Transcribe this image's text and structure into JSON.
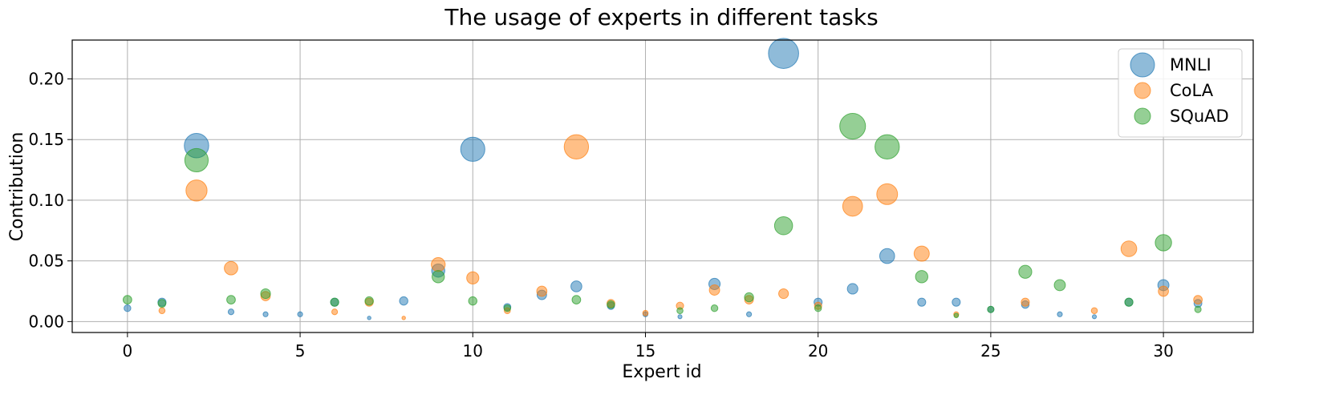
{
  "chart_data": {
    "type": "scatter",
    "title": "The usage of experts in different tasks",
    "xlabel": "Expert id",
    "ylabel": "Contribution",
    "xlim": [
      -1.6,
      32.6
    ],
    "ylim": [
      -0.009,
      0.232
    ],
    "xticks": [
      0,
      5,
      10,
      15,
      20,
      25,
      30
    ],
    "yticks": [
      0.0,
      0.05,
      0.1,
      0.15,
      0.2
    ],
    "ytick_labels": [
      "0.00",
      "0.05",
      "0.10",
      "0.15",
      "0.20"
    ],
    "grid": true,
    "legend_position": "top-right",
    "marker_size_encodes": "contribution",
    "series": [
      {
        "name": "MNLI",
        "color": "#1f77b4",
        "x": [
          0,
          1,
          2,
          3,
          4,
          5,
          6,
          7,
          8,
          9,
          10,
          11,
          12,
          13,
          14,
          15,
          16,
          17,
          18,
          19,
          20,
          21,
          22,
          23,
          24,
          25,
          26,
          27,
          28,
          29,
          30,
          31
        ],
        "y": [
          0.011,
          0.016,
          0.145,
          0.008,
          0.006,
          0.006,
          0.016,
          0.003,
          0.017,
          0.042,
          0.142,
          0.012,
          0.022,
          0.029,
          0.013,
          0.006,
          0.004,
          0.031,
          0.006,
          0.221,
          0.016,
          0.027,
          0.054,
          0.016,
          0.016,
          0.01,
          0.014,
          0.006,
          0.004,
          0.016,
          0.03,
          0.015
        ]
      },
      {
        "name": "CoLA",
        "color": "#ff7f0e",
        "x": [
          0,
          1,
          2,
          3,
          4,
          5,
          6,
          7,
          8,
          9,
          10,
          11,
          12,
          13,
          14,
          15,
          16,
          17,
          18,
          19,
          20,
          21,
          22,
          23,
          24,
          25,
          26,
          27,
          28,
          29,
          30,
          31
        ],
        "y": [
          0.0,
          0.009,
          0.108,
          0.044,
          0.021,
          0.0,
          0.008,
          0.016,
          0.003,
          0.047,
          0.036,
          0.009,
          0.025,
          0.144,
          0.015,
          0.007,
          0.013,
          0.026,
          0.018,
          0.023,
          0.013,
          0.095,
          0.105,
          0.056,
          0.006,
          0.0,
          0.016,
          0.0,
          0.009,
          0.06,
          0.025,
          0.018
        ]
      },
      {
        "name": "SQuAD",
        "color": "#2ca02c",
        "x": [
          0,
          1,
          2,
          3,
          4,
          5,
          6,
          7,
          8,
          9,
          10,
          11,
          12,
          13,
          14,
          15,
          16,
          17,
          18,
          19,
          20,
          21,
          22,
          23,
          24,
          25,
          26,
          27,
          28,
          29,
          30,
          31
        ],
        "y": [
          0.018,
          0.015,
          0.133,
          0.018,
          0.023,
          0.0,
          0.016,
          0.017,
          0.0,
          0.037,
          0.017,
          0.011,
          0.0,
          0.018,
          0.014,
          0.0,
          0.009,
          0.011,
          0.02,
          0.079,
          0.011,
          0.161,
          0.144,
          0.037,
          0.005,
          0.01,
          0.041,
          0.03,
          0.0,
          0.016,
          0.065,
          0.01
        ]
      }
    ]
  }
}
